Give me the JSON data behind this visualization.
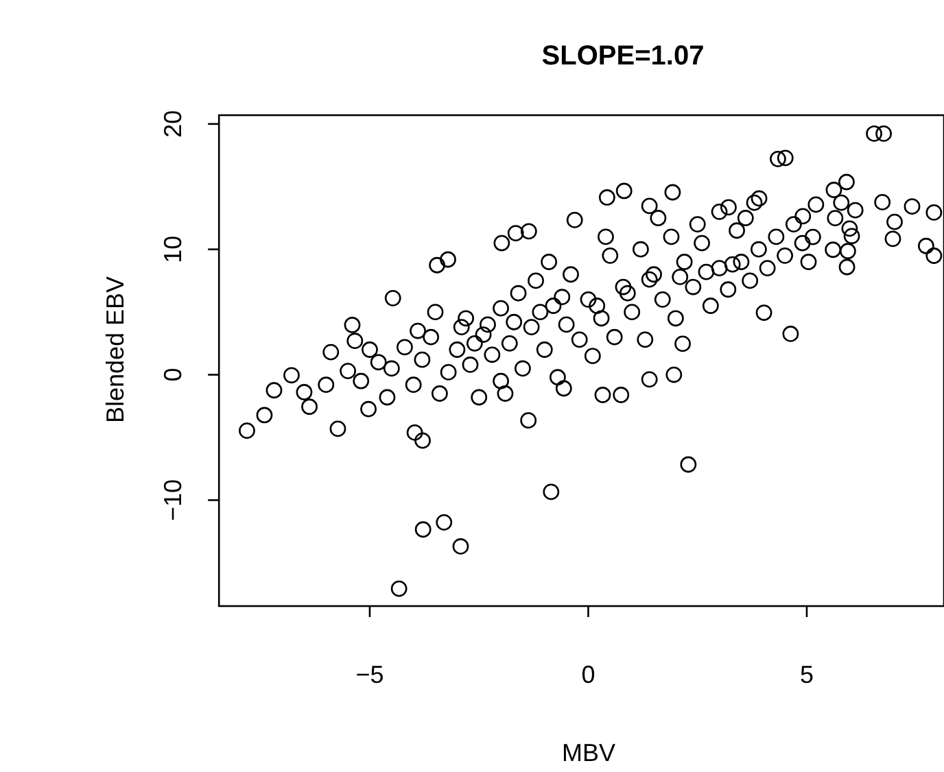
{
  "chart_data": {
    "type": "scatter",
    "title": "SLOPE=1.07",
    "xlabel": "MBV",
    "ylabel": "Blended EBV",
    "marker": "circle",
    "grid": false,
    "xlim": [
      -8.45,
      8.14
    ],
    "ylim": [
      -18.45,
      20.7
    ],
    "xticks": [
      {
        "value": -5,
        "label": "−5"
      },
      0,
      5
    ],
    "yticks": [
      {
        "value": -10,
        "label": "−10"
      },
      0,
      10,
      20
    ],
    "series": [
      {
        "color": "#000000",
        "x": [
          -7.81,
          -7.41,
          -7.19,
          -6.79,
          -6.5,
          -6.38,
          -5.89,
          -6.0,
          -5.73,
          -5.4,
          -5.34,
          -5.03,
          -4.47,
          -3.97,
          -3.79,
          -3.78,
          -3.3,
          -2.92,
          -4.33,
          -3.46,
          -3.21,
          -1.98,
          -1.66,
          -1.36,
          -1.37,
          -0.85,
          -0.56,
          -0.31,
          0.43,
          0.82,
          0.33,
          0.75,
          1.4,
          1.96,
          2.29,
          2.16,
          1.93,
          1.4,
          3.21,
          3.8,
          3.91,
          4.34,
          4.51,
          4.63,
          4.02,
          5.21,
          5.62,
          5.91,
          5.79,
          6.11,
          5.65,
          5.98,
          6.03,
          5.6,
          5.94,
          5.92,
          6.54,
          6.76,
          6.73,
          7.01,
          6.97,
          7.41,
          7.91,
          7.73,
          7.91,
          4.91,
          5.14,
          5.04,
          -4.5,
          -4.2,
          -4.0,
          -3.8,
          -3.6,
          -3.4,
          -3.2,
          -3.0,
          -2.8,
          -2.7,
          -2.5,
          -2.4,
          -2.2,
          -2.0,
          -2.0,
          -1.8,
          -1.6,
          -1.5,
          -1.3,
          -1.2,
          -1.0,
          -0.8,
          -0.7,
          -0.5,
          -0.4,
          -0.2,
          0,
          0.1,
          0.3,
          0.5,
          0.6,
          0.8,
          1.0,
          1.2,
          1.3,
          1.5,
          1.7,
          1.9,
          2.0,
          2.2,
          2.4,
          2.6,
          2.8,
          3.0,
          3.2,
          3.4,
          3.5,
          3.7,
          3.9,
          4.1,
          4.3,
          4.5,
          4.7,
          4.9,
          -3.5,
          -2.9,
          -3.9,
          -4.8,
          -5.2,
          -5.5,
          -5.0,
          -4.6,
          -1.9,
          -0.9,
          0.4,
          1.6,
          2.5,
          3.0,
          3.6,
          -2.6,
          -2.3,
          -1.7,
          -1.1,
          -0.6,
          0.2,
          0.9,
          1.4,
          2.1,
          2.7,
          3.3
        ],
        "values": [
          -4.46,
          -3.22,
          -1.24,
          -0.04,
          -1.39,
          -2.55,
          1.8,
          -0.8,
          -4.31,
          3.97,
          2.7,
          -2.74,
          6.11,
          -4.61,
          -5.25,
          -12.34,
          -11.77,
          -13.69,
          -17.06,
          8.74,
          9.19,
          10.5,
          11.29,
          11.44,
          -3.64,
          -9.34,
          -1.09,
          12.34,
          14.14,
          14.66,
          -1.61,
          -1.61,
          -0.37,
          0.0,
          -7.16,
          2.47,
          14.55,
          13.46,
          13.35,
          13.72,
          14.06,
          17.21,
          17.29,
          3.26,
          4.95,
          13.57,
          14.74,
          15.37,
          13.72,
          13.12,
          12.49,
          11.66,
          11.06,
          9.97,
          9.86,
          8.59,
          19.23,
          19.23,
          13.76,
          12.19,
          10.84,
          13.42,
          12.94,
          10.27,
          9.49,
          12.64,
          10.99,
          9.0,
          0.5,
          2.2,
          -0.8,
          1.2,
          3.0,
          -1.5,
          0.2,
          2.0,
          4.5,
          0.8,
          -1.8,
          3.2,
          1.6,
          5.3,
          -0.5,
          2.5,
          6.5,
          0.5,
          3.8,
          7.5,
          2.0,
          5.5,
          -0.2,
          4.0,
          8.0,
          2.8,
          6.0,
          1.5,
          4.5,
          9.5,
          3.0,
          7.0,
          5.0,
          10.0,
          2.8,
          8.0,
          6.0,
          11.0,
          4.5,
          9.0,
          7.0,
          10.5,
          5.5,
          8.5,
          6.8,
          11.5,
          9.0,
          7.5,
          10.0,
          8.5,
          11.0,
          9.5,
          12.0,
          10.5,
          5.0,
          3.8,
          3.5,
          1.0,
          -0.5,
          0.3,
          2.0,
          -1.8,
          -1.5,
          9.0,
          11.0,
          12.5,
          12.0,
          13.0,
          12.5,
          2.5,
          4.0,
          4.2,
          5.0,
          6.2,
          5.5,
          6.5,
          7.6,
          7.8,
          8.2,
          8.8
        ]
      }
    ]
  }
}
